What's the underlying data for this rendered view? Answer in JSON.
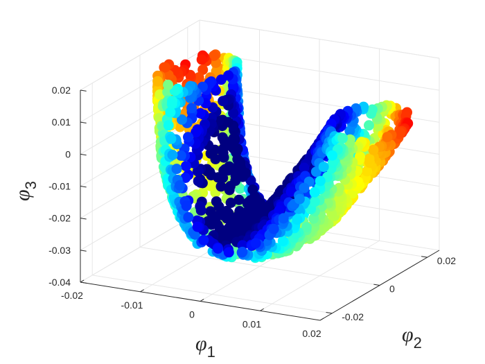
{
  "chart_data": {
    "type": "scatter",
    "projection": "3d",
    "grid": true,
    "colormap": "jet",
    "xlabel": {
      "symbol": "φ",
      "subscript": "1"
    },
    "ylabel": {
      "symbol": "φ",
      "subscript": "2"
    },
    "zlabel": {
      "symbol": "φ",
      "subscript": "3"
    },
    "xlim": [
      -0.02,
      0.02
    ],
    "ylim": [
      -0.025,
      0.025
    ],
    "zlim": [
      -0.04,
      0.02
    ],
    "xticks": [
      -0.02,
      -0.01,
      0,
      0.01,
      0.02
    ],
    "xtick_labels": [
      "-0.02",
      "-0.01",
      "0",
      "0.01",
      "0.02"
    ],
    "yticks": [
      -0.02,
      0,
      0.02
    ],
    "ytick_labels": [
      "-0.02",
      "0",
      "0.02"
    ],
    "zticks": [
      -0.04,
      -0.03,
      -0.02,
      -0.01,
      0,
      0.01,
      0.02
    ],
    "ztick_labels": [
      "-0.04",
      "-0.03",
      "-0.02",
      "-0.01",
      "0",
      "0.01",
      "0.02"
    ],
    "manifold": {
      "shape": "U-shaped tube",
      "spine": [
        {
          "x": -0.012,
          "y": 0.004,
          "z": 0.016,
          "t": 0.92
        },
        {
          "x": -0.012,
          "y": 0.004,
          "z": 0.008,
          "t": 0.78
        },
        {
          "x": -0.0115,
          "y": 0.0035,
          "z": 0.0,
          "t": 0.66
        },
        {
          "x": -0.011,
          "y": 0.003,
          "z": -0.008,
          "t": 0.55
        },
        {
          "x": -0.0095,
          "y": 0.002,
          "z": -0.016,
          "t": 0.45
        },
        {
          "x": -0.007,
          "y": 0.0005,
          "z": -0.024,
          "t": 0.36
        },
        {
          "x": -0.004,
          "y": -0.001,
          "z": -0.029,
          "t": 0.32
        },
        {
          "x": 0.0,
          "y": -0.002,
          "z": -0.03,
          "t": 0.33
        },
        {
          "x": 0.004,
          "y": -0.0015,
          "z": -0.027,
          "t": 0.38
        },
        {
          "x": 0.007,
          "y": 0.0005,
          "z": -0.021,
          "t": 0.45
        },
        {
          "x": 0.0095,
          "y": 0.0035,
          "z": -0.013,
          "t": 0.55
        },
        {
          "x": 0.012,
          "y": 0.007,
          "z": -0.005,
          "t": 0.68
        },
        {
          "x": 0.0135,
          "y": 0.009,
          "z": 0.001,
          "t": 0.8
        },
        {
          "x": 0.0145,
          "y": 0.01,
          "z": 0.005,
          "t": 0.9
        }
      ],
      "tube_radius": 0.005
    },
    "colors": {
      "axis": "#262626",
      "grid": "#e6e6e6",
      "background": "#ffffff"
    }
  }
}
